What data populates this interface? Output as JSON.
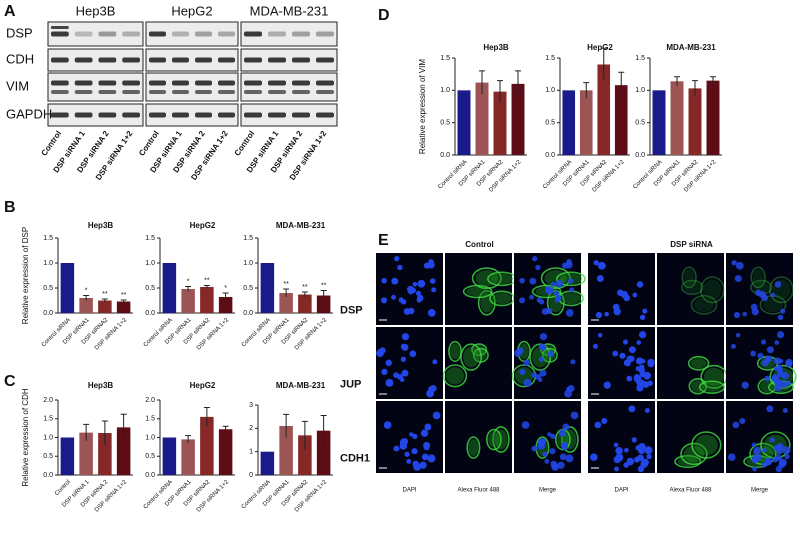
{
  "panel_labels": [
    "A",
    "B",
    "C",
    "D",
    "E"
  ],
  "blot": {
    "cell_lines": [
      "Hep3B",
      "HepG2",
      "MDA-MB-231"
    ],
    "proteins": [
      "DSP",
      "CDH",
      "VIM",
      "GAPDH"
    ],
    "lanes": [
      "Control",
      "DSP siRNA 1",
      "DSP siRNA 2",
      "DSP siRNA 1+2"
    ]
  },
  "chart_data": [
    {
      "type": "bar",
      "title": "Hep3B",
      "y_label": "Relative expression of DSP",
      "categories": [
        "Control siRNA",
        "DSP siRNA1",
        "DSP siRNA2",
        "DSP siRNA 1+2"
      ],
      "values": [
        1.0,
        0.3,
        0.25,
        0.23
      ],
      "errors": [
        null,
        0.05,
        0.03,
        0.03
      ],
      "significance": [
        null,
        "*",
        "**",
        "**"
      ],
      "colors": [
        "#1a1a8a",
        "#9c5454",
        "#862828",
        "#5e0d16"
      ],
      "ylim": [
        0,
        1.5
      ],
      "yticks": [
        {
          "value": 0,
          "label": "0.0"
        },
        {
          "value": 0.5,
          "label": "0.5"
        },
        {
          "value": 1,
          "label": "1.0"
        },
        {
          "value": 1.5,
          "label": "1.5"
        }
      ]
    },
    {
      "type": "bar",
      "title": "HepG2",
      "categories": [
        "Control siRNA",
        "DSP siRNA1",
        "DSP siRNA2",
        "DSP siRNA 1+2"
      ],
      "values": [
        1.0,
        0.48,
        0.52,
        0.32
      ],
      "errors": [
        null,
        0.05,
        0.03,
        0.08
      ],
      "significance": [
        null,
        "*",
        "**",
        "*"
      ],
      "colors": [
        "#1a1a8a",
        "#9c5454",
        "#862828",
        "#5e0d16"
      ],
      "ylim": [
        0,
        1.5
      ],
      "yticks": [
        {
          "value": 0,
          "label": "0.0"
        },
        {
          "value": 0.5,
          "label": "0.5"
        },
        {
          "value": 1,
          "label": "1.0"
        },
        {
          "value": 1.5,
          "label": "1.5"
        }
      ]
    },
    {
      "type": "bar",
      "title": "MDA-MB-231",
      "categories": [
        "Control siRNA",
        "DSP siRNA1",
        "DSP siRNA2",
        "DSP siRNA 1+2"
      ],
      "values": [
        1.0,
        0.4,
        0.37,
        0.35
      ],
      "errors": [
        null,
        0.08,
        0.05,
        0.1
      ],
      "significance": [
        null,
        "**",
        "**",
        "**"
      ],
      "colors": [
        "#1a1a8a",
        "#9c5454",
        "#862828",
        "#5e0d16"
      ],
      "ylim": [
        0,
        1.5
      ],
      "yticks": [
        {
          "value": 0,
          "label": "0.0"
        },
        {
          "value": 0.5,
          "label": "0.5"
        },
        {
          "value": 1,
          "label": "1.0"
        },
        {
          "value": 1.5,
          "label": "1.5"
        }
      ]
    },
    {
      "type": "bar",
      "title": "Hep3B",
      "y_label": "Relative expression of CDH",
      "categories": [
        "Control",
        "DSP siRNA 1",
        "DSP siRNA 2",
        "DSP siRNA 1+2"
      ],
      "values": [
        1.0,
        1.13,
        1.12,
        1.27
      ],
      "errors": [
        null,
        0.22,
        0.32,
        0.35
      ],
      "colors": [
        "#1a1a8a",
        "#9c5454",
        "#862828",
        "#5e0d16"
      ],
      "ylim": [
        0,
        2
      ],
      "yticks": [
        {
          "value": 0,
          "label": "0.0"
        },
        {
          "value": 0.5,
          "label": "0.5"
        },
        {
          "value": 1,
          "label": "1.0"
        },
        {
          "value": 1.5,
          "label": "1.5"
        },
        {
          "value": 2,
          "label": "2.0"
        }
      ]
    },
    {
      "type": "bar",
      "title": "HepG2",
      "categories": [
        "Control siRNA",
        "DSP siRNA1",
        "DSP siRNA2",
        "DSP siRNA 1+2"
      ],
      "values": [
        1.0,
        0.95,
        1.55,
        1.22
      ],
      "errors": [
        null,
        0.1,
        0.25,
        0.08
      ],
      "colors": [
        "#1a1a8a",
        "#9c5454",
        "#862828",
        "#5e0d16"
      ],
      "ylim": [
        0,
        2
      ],
      "yticks": [
        {
          "value": 0,
          "label": "0.0"
        },
        {
          "value": 0.5,
          "label": "0.5"
        },
        {
          "value": 1,
          "label": "1.0"
        },
        {
          "value": 1.5,
          "label": "1.5"
        },
        {
          "value": 2,
          "label": "2.0"
        }
      ]
    },
    {
      "type": "bar",
      "title": "MDA-MB-231",
      "categories": [
        "Control siRNA",
        "DSP siRNA1",
        "DSP siRNA2",
        "DSP siRNA 1+2"
      ],
      "values": [
        1.0,
        2.1,
        1.7,
        1.9
      ],
      "errors": [
        null,
        0.5,
        0.6,
        0.65
      ],
      "colors": [
        "#1a1a8a",
        "#9c5454",
        "#862828",
        "#5e0d16"
      ],
      "ylim": [
        0,
        3
      ],
      "yticks": [
        0,
        1,
        2,
        3
      ]
    },
    {
      "type": "bar",
      "title": "Hep3B",
      "y_label": "Relative expression of VIM",
      "categories": [
        "Control siRNA",
        "DSP siRNA1",
        "DSP siRNA2",
        "DSP siRNA 1+2"
      ],
      "values": [
        1.0,
        1.12,
        0.98,
        1.1
      ],
      "errors": [
        null,
        0.18,
        0.17,
        0.2
      ],
      "colors": [
        "#1a1a8a",
        "#9c5454",
        "#862828",
        "#5e0d16"
      ],
      "ylim": [
        0,
        1.5
      ],
      "yticks": [
        {
          "value": 0,
          "label": "0.0"
        },
        {
          "value": 0.5,
          "label": "0.5"
        },
        {
          "value": 1,
          "label": "1.0"
        },
        {
          "value": 1.5,
          "label": "1.5"
        }
      ]
    },
    {
      "type": "bar",
      "title": "HepG2",
      "categories": [
        "Control siRNA",
        "DSP siRNA1",
        "DSP siRNA2",
        "DSP siRNA 1+2"
      ],
      "values": [
        1.0,
        1.0,
        1.4,
        1.08
      ],
      "errors": [
        null,
        0.12,
        0.25,
        0.2
      ],
      "colors": [
        "#1a1a8a",
        "#9c5454",
        "#862828",
        "#5e0d16"
      ],
      "ylim": [
        0,
        1.5
      ],
      "yticks": [
        {
          "value": 0,
          "label": "0.0"
        },
        {
          "value": 0.5,
          "label": "0.5"
        },
        {
          "value": 1,
          "label": "1.0"
        },
        {
          "value": 1.5,
          "label": "1.5"
        }
      ]
    },
    {
      "type": "bar",
      "title": "MDA-MB-231",
      "categories": [
        "Control siRNA",
        "DSP siRNA1",
        "DSP siRNA2",
        "DSP siRNA 1+2"
      ],
      "values": [
        1.0,
        1.14,
        1.03,
        1.15
      ],
      "errors": [
        null,
        0.07,
        0.12,
        0.06
      ],
      "colors": [
        "#1a1a8a",
        "#9c5454",
        "#862828",
        "#5e0d16"
      ],
      "ylim": [
        0,
        1.5
      ],
      "yticks": [
        {
          "value": 0,
          "label": "0.0"
        },
        {
          "value": 0.5,
          "label": "0.5"
        },
        {
          "value": 1,
          "label": "1.0"
        },
        {
          "value": 1.5,
          "label": "1.5"
        }
      ]
    }
  ],
  "microscopy": {
    "conditions": [
      "Control",
      "DSP siRNA"
    ],
    "stains": [
      "DSP",
      "JUP",
      "CDH1"
    ],
    "channels": [
      "DAPI",
      "Alexa Fluor 488",
      "Merge"
    ]
  }
}
